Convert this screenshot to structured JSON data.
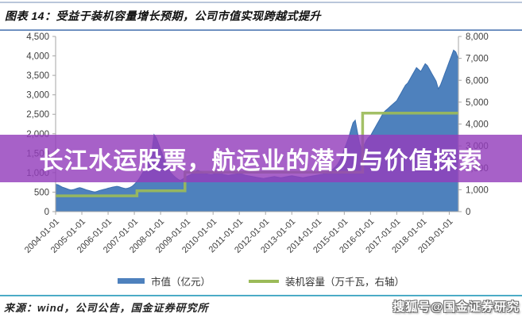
{
  "header": {
    "title": "图表 14：受益于装机容量增长预期，公司市值实现跨越式提升"
  },
  "overlay": {
    "text": "长江水运股票，航运业的潜力与价值探索",
    "band_color": "rgba(148,62,188,0.82)"
  },
  "legend": {
    "items": [
      {
        "label": "市值（亿元）",
        "color": "#4E81BD",
        "swatch": "bar"
      },
      {
        "label": "装机容量（万千瓦，右轴）",
        "color": "#9BBB59",
        "swatch": "line"
      }
    ]
  },
  "footer": {
    "source": "来源：wind，公司公告，国金证券研究所",
    "rule_color": "#4BACC6"
  },
  "watermark": {
    "text": "搜狐号@国金证券研究"
  },
  "chart_data": {
    "type": "area",
    "title": "",
    "xlabel": "",
    "ylabel_left": "市值（亿元）",
    "ylabel_right": "装机容量（万千瓦）",
    "grid": false,
    "legend_position": "bottom",
    "x_range": [
      2004.0,
      2019.35
    ],
    "x_tick_labels": [
      "2004-01-01",
      "2005-01-01",
      "2006-01-01",
      "2007-01-01",
      "2008-01-01",
      "2009-01-01",
      "2010-01-01",
      "2011-01-01",
      "2012-01-01",
      "2013-01-01",
      "2014-01-01",
      "2015-01-01",
      "2016-01-01",
      "2017-01-01",
      "2018-01-01",
      "2019-01-01"
    ],
    "left_axis": {
      "min": 0,
      "max": 4500,
      "tick_labels": [
        "0",
        "500",
        "1,000",
        "1,500",
        "2,000",
        "2,500",
        "3,000",
        "3,500",
        "4,000",
        "4,500"
      ]
    },
    "right_axis": {
      "min": 0,
      "max": 8000,
      "tick_labels": [
        "0",
        "1,000",
        "2,000",
        "3,000",
        "4,000",
        "5,000",
        "6,000",
        "7,000",
        "8,000"
      ]
    },
    "series": [
      {
        "name": "市值（亿元）",
        "type": "area",
        "axis": "left",
        "fill_color": "#4E81BD",
        "edge_color": "#3B6FAF",
        "x_start": 2004.0,
        "x_step": 0.083333,
        "values": [
          700,
          690,
          660,
          630,
          610,
          590,
          570,
          555,
          565,
          580,
          600,
          615,
          600,
          580,
          560,
          545,
          530,
          515,
          505,
          520,
          540,
          555,
          570,
          585,
          600,
          615,
          630,
          640,
          650,
          640,
          620,
          605,
          590,
          600,
          620,
          650,
          700,
          760,
          830,
          920,
          1020,
          1130,
          1250,
          1380,
          1550,
          1980,
          1900,
          1750,
          1600,
          1450,
          1280,
          1150,
          1050,
          980,
          920,
          870,
          830,
          800,
          830,
          870,
          900,
          930,
          960,
          1000,
          1040,
          1060,
          1040,
          1010,
          990,
          970,
          960,
          950,
          960,
          980,
          1000,
          990,
          970,
          950,
          940,
          930,
          940,
          950,
          960,
          970,
          980,
          970,
          950,
          930,
          920,
          910,
          900,
          890,
          880,
          870,
          860,
          850,
          860,
          870,
          880,
          890,
          900,
          890,
          880,
          870,
          880,
          890,
          900,
          910,
          920,
          910,
          900,
          890,
          880,
          870,
          880,
          890,
          900,
          910,
          920,
          930,
          940,
          950,
          960,
          980,
          1000,
          1030,
          1060,
          1100,
          1150,
          1220,
          1320,
          1450,
          1600,
          1750,
          1900,
          2100,
          2280,
          2350,
          2050,
          1750,
          1600,
          1700,
          1820,
          1900,
          1950,
          2050,
          2150,
          2250,
          2350,
          2450,
          2550,
          2600,
          2650,
          2700,
          2750,
          2800,
          2850,
          2950,
          3050,
          3150,
          3250,
          3300,
          3400,
          3500,
          3600,
          3700,
          3650,
          3600,
          3700,
          3800,
          3750,
          3650,
          3550,
          3450,
          3350,
          3150,
          3250,
          3400,
          3550,
          3700,
          3850,
          4000,
          4150,
          4100,
          3950
        ]
      },
      {
        "name": "装机容量（万千瓦，右轴）",
        "type": "step-line",
        "axis": "right",
        "color": "#9BBB59",
        "x_end": 2019.35,
        "points": [
          {
            "x": 2004.0,
            "y": 720
          },
          {
            "x": 2007.1,
            "y": 950
          },
          {
            "x": 2008.93,
            "y": 1800
          },
          {
            "x": 2015.7,
            "y": 4500
          }
        ]
      }
    ]
  }
}
